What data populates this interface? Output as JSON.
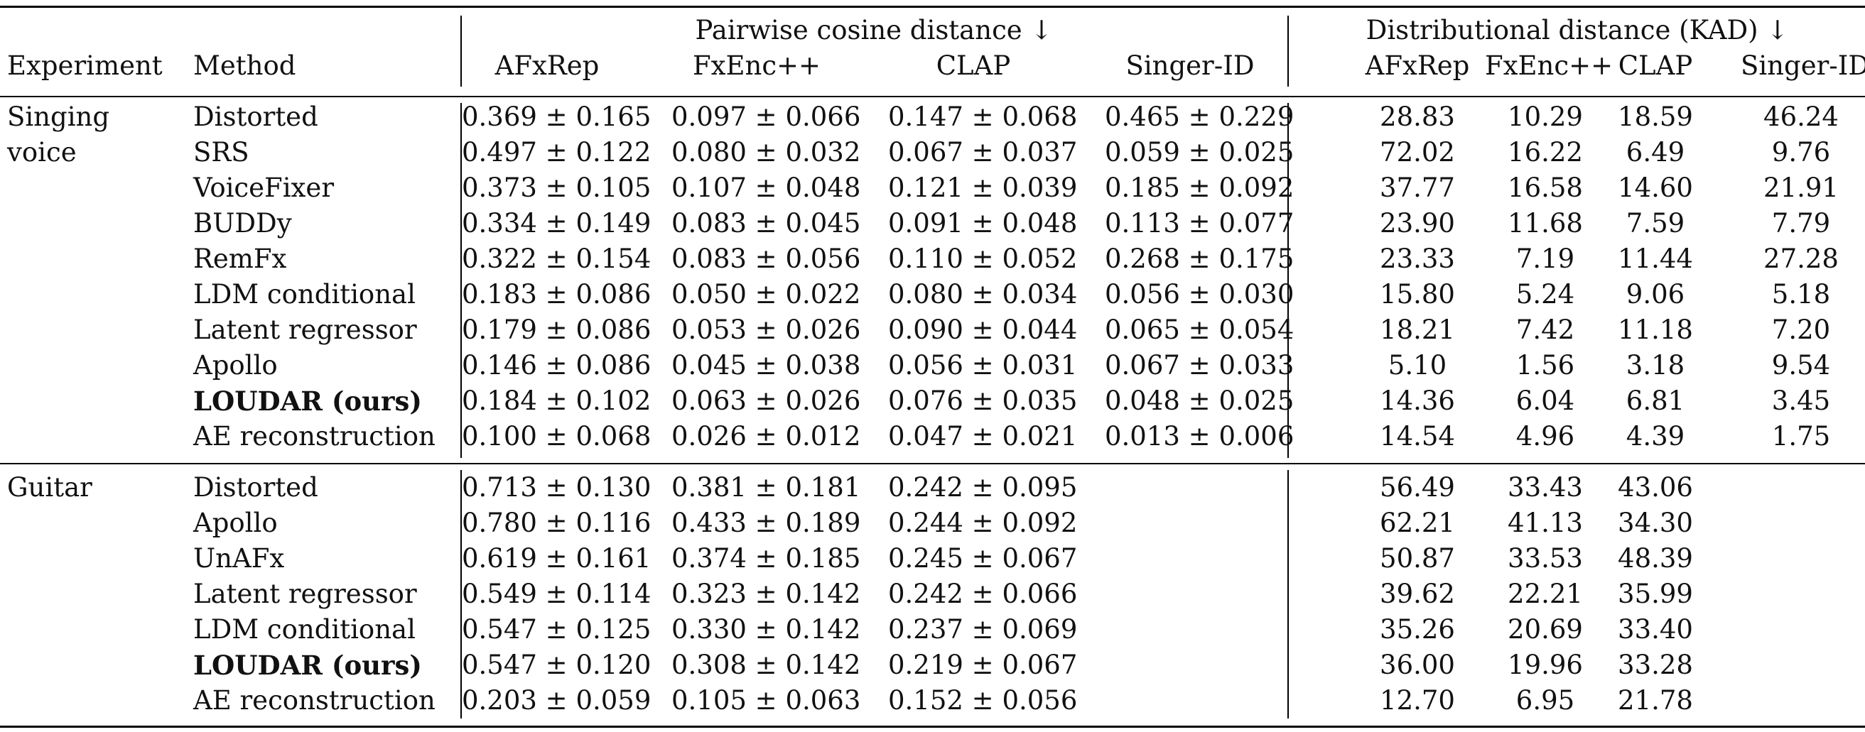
{
  "header": {
    "group_pairwise": "Pairwise cosine distance ↓",
    "group_kad": "Distributional distance (KAD) ↓",
    "col_experiment": "Experiment",
    "col_method": "Method",
    "metric_cols": [
      "AFxRep",
      "FxEnc++",
      "CLAP",
      "Singer-ID",
      "AFxRep",
      "FxEnc++",
      "CLAP",
      "Singer-ID"
    ]
  },
  "sections": [
    {
      "experiment_lines": [
        "Singing",
        "voice"
      ],
      "rows": [
        {
          "method": "Distorted",
          "bold": false,
          "values": [
            "0.369 ± 0.165",
            "0.097 ± 0.066",
            "0.147 ± 0.068",
            "0.465 ± 0.229",
            "28.83",
            "10.29",
            "18.59",
            "46.24"
          ]
        },
        {
          "method": "SRS",
          "bold": false,
          "values": [
            "0.497 ± 0.122",
            "0.080 ± 0.032",
            "0.067 ± 0.037",
            "0.059 ± 0.025",
            "72.02",
            "16.22",
            "6.49",
            "9.76"
          ]
        },
        {
          "method": "VoiceFixer",
          "bold": false,
          "values": [
            "0.373 ± 0.105",
            "0.107 ± 0.048",
            "0.121 ± 0.039",
            "0.185 ± 0.092",
            "37.77",
            "16.58",
            "14.60",
            "21.91"
          ]
        },
        {
          "method": "BUDDy",
          "bold": false,
          "values": [
            "0.334 ± 0.149",
            "0.083 ± 0.045",
            "0.091 ± 0.048",
            "0.113 ± 0.077",
            "23.90",
            "11.68",
            "7.59",
            "7.79"
          ]
        },
        {
          "method": "RemFx",
          "bold": false,
          "values": [
            "0.322 ± 0.154",
            "0.083 ± 0.056",
            "0.110 ± 0.052",
            "0.268 ± 0.175",
            "23.33",
            "7.19",
            "11.44",
            "27.28"
          ]
        },
        {
          "method": "LDM conditional",
          "bold": false,
          "values": [
            "0.183 ± 0.086",
            "0.050 ± 0.022",
            "0.080 ± 0.034",
            "0.056 ± 0.030",
            "15.80",
            "5.24",
            "9.06",
            "5.18"
          ]
        },
        {
          "method": "Latent regressor",
          "bold": false,
          "values": [
            "0.179 ± 0.086",
            "0.053 ± 0.026",
            "0.090 ± 0.044",
            "0.065 ± 0.054",
            "18.21",
            "7.42",
            "11.18",
            "7.20"
          ]
        },
        {
          "method": "Apollo",
          "bold": false,
          "values": [
            "0.146 ± 0.086",
            "0.045 ± 0.038",
            "0.056 ± 0.031",
            "0.067 ± 0.033",
            "5.10",
            "1.56",
            "3.18",
            "9.54"
          ]
        },
        {
          "method": "LOUDAR (ours)",
          "bold": true,
          "values": [
            "0.184 ± 0.102",
            "0.063 ± 0.026",
            "0.076 ± 0.035",
            "0.048 ± 0.025",
            "14.36",
            "6.04",
            "6.81",
            "3.45"
          ]
        },
        {
          "method": "AE reconstruction",
          "bold": false,
          "values": [
            "0.100 ± 0.068",
            "0.026 ± 0.012",
            "0.047 ± 0.021",
            "0.013 ± 0.006",
            "14.54",
            "4.96",
            "4.39",
            "1.75"
          ]
        }
      ]
    },
    {
      "experiment_lines": [
        "Guitar"
      ],
      "rows": [
        {
          "method": "Distorted",
          "bold": false,
          "values": [
            "0.713 ± 0.130",
            "0.381 ± 0.181",
            "0.242 ± 0.095",
            "",
            "56.49",
            "33.43",
            "43.06",
            ""
          ]
        },
        {
          "method": "Apollo",
          "bold": false,
          "values": [
            "0.780 ± 0.116",
            "0.433 ± 0.189",
            "0.244 ± 0.092",
            "",
            "62.21",
            "41.13",
            "34.30",
            ""
          ]
        },
        {
          "method": "UnAFx",
          "bold": false,
          "values": [
            "0.619 ± 0.161",
            "0.374 ± 0.185",
            "0.245 ± 0.067",
            "",
            "50.87",
            "33.53",
            "48.39",
            ""
          ]
        },
        {
          "method": "Latent regressor",
          "bold": false,
          "values": [
            "0.549 ± 0.114",
            "0.323 ± 0.142",
            "0.242 ± 0.066",
            "",
            "39.62",
            "22.21",
            "35.99",
            ""
          ]
        },
        {
          "method": "LDM conditional",
          "bold": false,
          "values": [
            "0.547 ± 0.125",
            "0.330 ± 0.142",
            "0.237 ± 0.069",
            "",
            "35.26",
            "20.69",
            "33.40",
            ""
          ]
        },
        {
          "method": "LOUDAR (ours)",
          "bold": true,
          "values": [
            "0.547 ± 0.120",
            "0.308 ± 0.142",
            "0.219 ± 0.067",
            "",
            "36.00",
            "19.96",
            "33.28",
            ""
          ]
        },
        {
          "method": "AE reconstruction",
          "bold": false,
          "values": [
            "0.203 ± 0.059",
            "0.105 ± 0.063",
            "0.152 ± 0.056",
            "",
            "12.70",
            "6.95",
            "21.78",
            ""
          ]
        }
      ]
    }
  ]
}
